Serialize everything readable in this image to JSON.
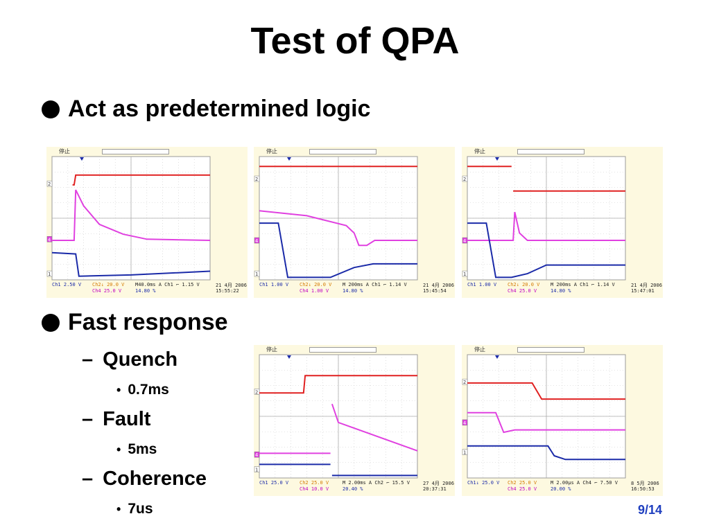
{
  "slide": {
    "title": "Test of QPA",
    "bullets": [
      {
        "text": "Act as predetermined logic"
      },
      {
        "text": "Fast response",
        "sub": [
          {
            "text": "Quench",
            "sub": "0.7ms"
          },
          {
            "text": "Fault",
            "sub": "5ms"
          },
          {
            "text": "Coherence",
            "sub": "7us"
          }
        ]
      }
    ],
    "page_number": "9/14"
  },
  "scopes": [
    {
      "status": "停止",
      "ch1": "Ch1  2.50 V",
      "ch2": "Ch2↓ 20.0 V",
      "ch4": "Ch4  25.0 V",
      "time": "M40.0ms  A  Ch1 ⌐  1.15 V",
      "trigger": "14.80 %",
      "date": "21 4月  2006",
      "clock": "15:55:22"
    },
    {
      "status": "停止",
      "ch1": "Ch1  1.00 V",
      "ch2": "Ch2↓ 20.0 V",
      "ch4": "Ch4  1.00 V",
      "time": "M 200ms  A  Ch1 ⌐  1.14 V",
      "trigger": "14.80 %",
      "date": "21 4月  2006",
      "clock": "15:45:54"
    },
    {
      "status": "停止",
      "ch1": "Ch1  1.00 V",
      "ch2": "Ch2↓ 20.0 V",
      "ch4": "Ch4  25.0 V",
      "time": "M 200ms  A  Ch1 ⌐  1.14 V",
      "trigger": "14.80 %",
      "date": "21 4月  2006",
      "clock": "15:47:01"
    },
    {
      "status": "停止",
      "ch1": "Ch1  25.0 V",
      "ch2": "Ch2  25.0 V",
      "ch4": "Ch4  10.0 V",
      "time": "M 2.00ms  A  Ch2 ⌐  15.5 V",
      "trigger": "20.40 %",
      "date": "27 4月  2006",
      "clock": "20:37:31"
    },
    {
      "status": "停止",
      "ch1": "Ch1↓ 25.0 V",
      "ch2": "Ch2  25.0 V",
      "ch4": "Ch4  25.0 V",
      "time": "M 2.00µs  A  Ch4 ⌐  7.50 V",
      "trigger": "20.00 %",
      "date": "8 5月  2006",
      "clock": "16:50:53"
    }
  ],
  "colors": {
    "ch1": "#1a2aa8",
    "ch2": "#e02020",
    "ch4": "#e040e0",
    "background": "#fdf9e0"
  }
}
